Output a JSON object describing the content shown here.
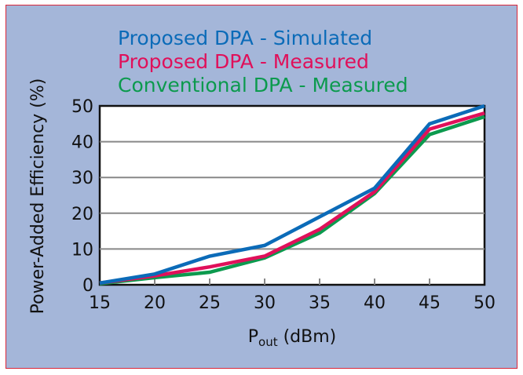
{
  "chart_data": {
    "type": "line",
    "title": "",
    "xlabel": "P",
    "xlabel_sub": "out",
    "xlabel_unit": " (dBm)",
    "ylabel": "Power-Added Efficiency (%)",
    "x": [
      15,
      20,
      25,
      30,
      35,
      40,
      45,
      50
    ],
    "xlim": [
      15,
      50
    ],
    "ylim": [
      0,
      50
    ],
    "xticks": [
      15,
      20,
      25,
      30,
      35,
      40,
      45,
      50
    ],
    "yticks": [
      0,
      10,
      20,
      30,
      40,
      50
    ],
    "grid": true,
    "legend_position": "top",
    "series": [
      {
        "name": "Proposed DPA - Simulated",
        "color": "#0b6bb8",
        "values": [
          0.5,
          3,
          8,
          11,
          19,
          27,
          45,
          50
        ]
      },
      {
        "name": "Proposed DPA - Measured",
        "color": "#e0105a",
        "values": [
          0.5,
          2.5,
          5,
          8,
          15.5,
          26,
          43.5,
          48
        ]
      },
      {
        "name": "Conventional DPA - Measured",
        "color": "#0c9a4e",
        "values": [
          0.3,
          2,
          3.5,
          7.5,
          14.5,
          25.5,
          42,
          47
        ]
      }
    ]
  }
}
